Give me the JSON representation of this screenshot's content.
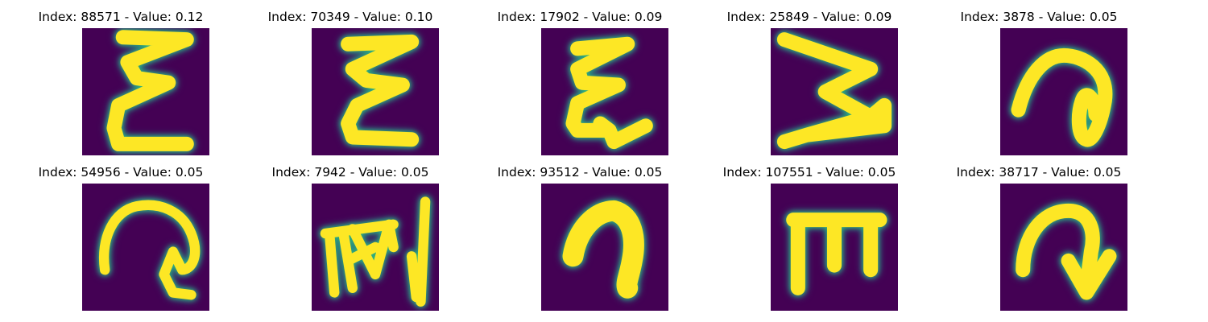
{
  "colors": {
    "background": "#440154",
    "stroke_core": "#fde725",
    "stroke_edge": "#35b779",
    "stroke_halo": "#21918c"
  },
  "panels": [
    {
      "index": "88571",
      "value": "0.12",
      "title": "Index: 88571 - Value: 0.12",
      "glyph": "three-stacked-zigzag-e-icon"
    },
    {
      "index": "70349",
      "value": "0.10",
      "title": "Index: 70349 - Value: 0.10",
      "glyph": "three-stacked-zigzag-e-icon"
    },
    {
      "index": "17902",
      "value": "0.09",
      "title": "Index: 17902 - Value: 0.09",
      "glyph": "three-stacked-zigzag-e-icon"
    },
    {
      "index": "25849",
      "value": "0.09",
      "title": "Index: 25849 - Value: 0.09",
      "glyph": "sideways-w-zigzag-icon"
    },
    {
      "index": "3878",
      "value": "0.05",
      "title": "Index: 3878 - Value: 0.05",
      "glyph": "looped-swirl-icon"
    },
    {
      "index": "54956",
      "value": "0.05",
      "title": "Index: 54956 - Value: 0.05",
      "glyph": "arch-with-hook-icon"
    },
    {
      "index": "7942",
      "value": "0.05",
      "title": "Index: 7942 - Value: 0.05",
      "glyph": "scribbled-strokes-icon"
    },
    {
      "index": "93512",
      "value": "0.05",
      "title": "Index: 93512 - Value: 0.05",
      "glyph": "thick-arch-icon"
    },
    {
      "index": "107551",
      "value": "0.05",
      "title": "Index: 107551 - Value: 0.05",
      "glyph": "upright-m-comb-icon"
    },
    {
      "index": "38717",
      "value": "0.05",
      "title": "Index: 38717 - Value: 0.05",
      "glyph": "arch-with-arrow-icon"
    }
  ]
}
